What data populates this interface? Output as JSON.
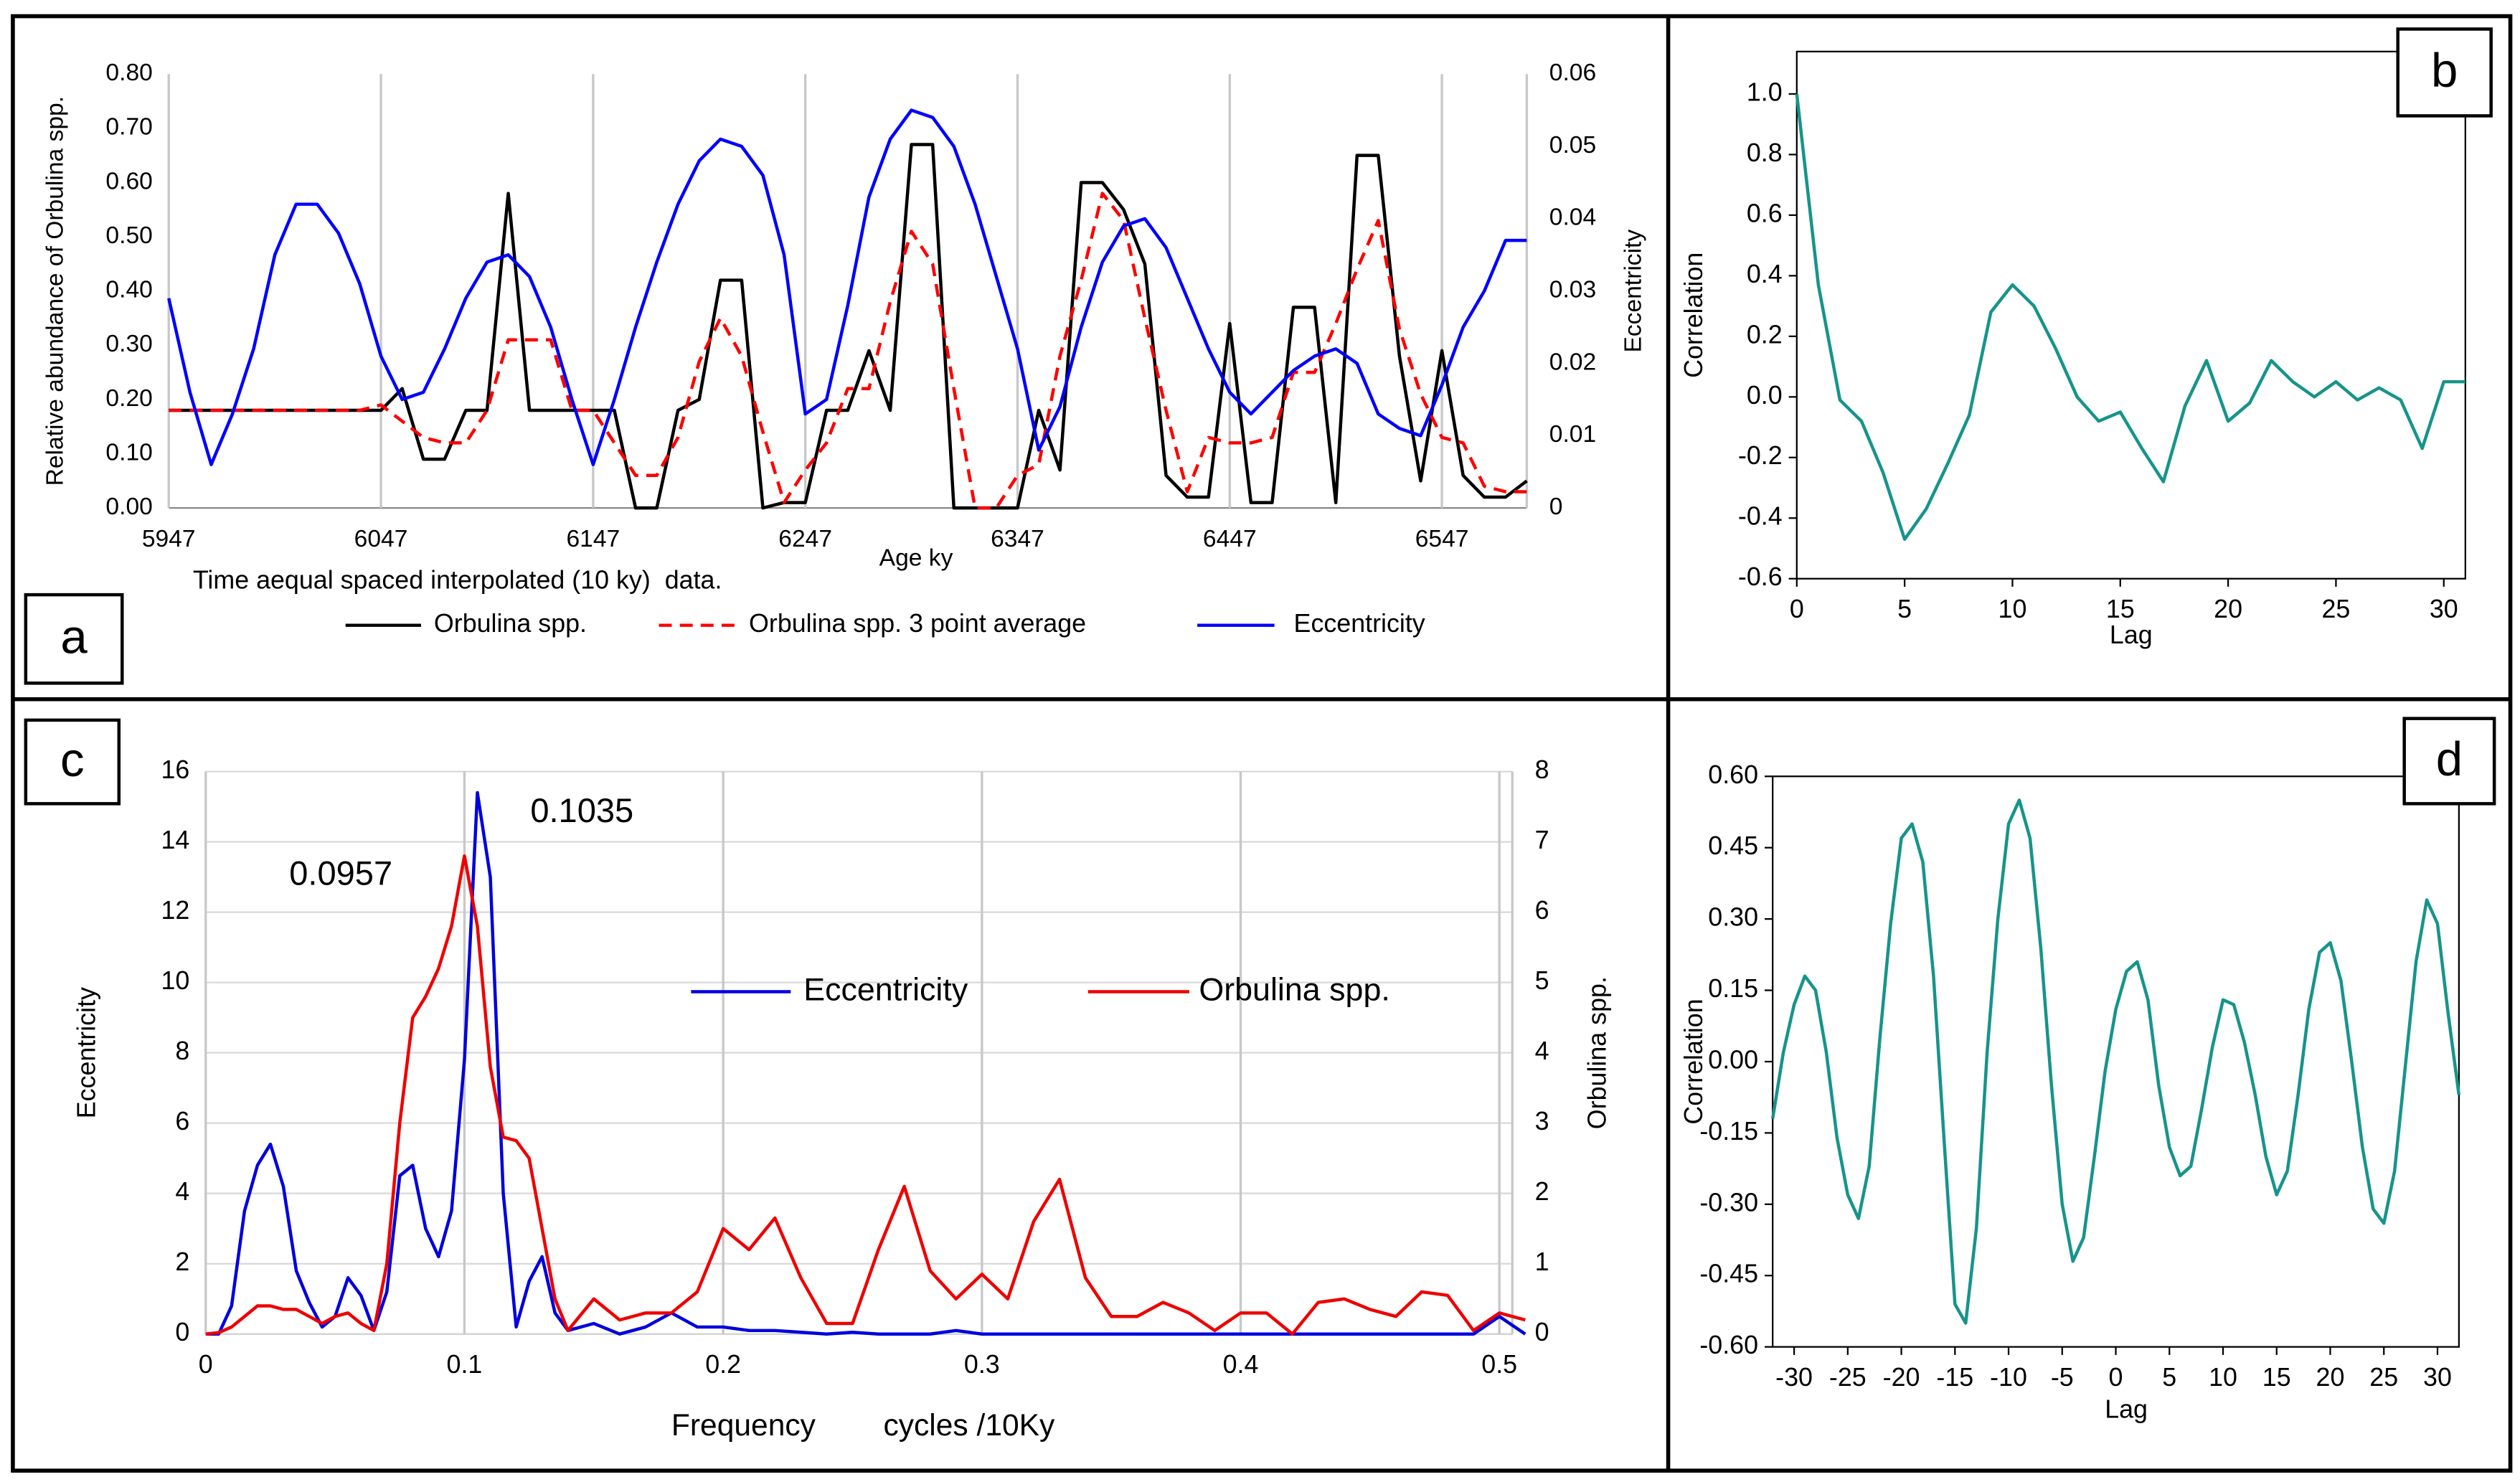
{
  "chart_data": [
    {
      "type": "line",
      "ylabel": "Relative abundance of Orbulina spp.",
      "y2label": "Eccentricity",
      "xlabel": "Age ky",
      "note": "Time aequal spaced interpolated (10 ky)  data.",
      "panel": "a",
      "x": [
        5947,
        5957,
        5967,
        5977,
        5987,
        5997,
        6007,
        6017,
        6027,
        6037,
        6047,
        6057,
        6067,
        6077,
        6087,
        6097,
        6107,
        6117,
        6127,
        6137,
        6147,
        6157,
        6167,
        6177,
        6187,
        6197,
        6207,
        6217,
        6227,
        6237,
        6247,
        6257,
        6267,
        6277,
        6287,
        6297,
        6307,
        6317,
        6327,
        6337,
        6347,
        6357,
        6367,
        6377,
        6387,
        6397,
        6407,
        6417,
        6427,
        6437,
        6447,
        6457,
        6467,
        6477,
        6487,
        6497,
        6507,
        6517,
        6527,
        6537,
        6547,
        6557,
        6567,
        6577,
        6587
      ],
      "xlim": [
        5947,
        6587
      ],
      "xticks": [
        5947,
        6047,
        6147,
        6247,
        6347,
        6447,
        6547
      ],
      "ylim": [
        0,
        0.8
      ],
      "yticks": [
        {
          "value": 0,
          "label": "0.00"
        },
        {
          "value": 0.1,
          "label": "0.10"
        },
        {
          "value": 0.2,
          "label": "0.20"
        },
        {
          "value": 0.3,
          "label": "0.30"
        },
        {
          "value": 0.4,
          "label": "0.40"
        },
        {
          "value": 0.5,
          "label": "0.50"
        },
        {
          "value": 0.6,
          "label": "0.60"
        },
        {
          "value": 0.7,
          "label": "0.70"
        },
        {
          "value": 0.8,
          "label": "0.80"
        }
      ],
      "y2lim": [
        0,
        0.06
      ],
      "y2ticks": [
        0,
        0.01,
        0.02,
        0.03,
        0.04,
        0.05,
        0.06
      ],
      "grid": "x",
      "series": [
        {
          "name": "Orbulina spp.",
          "color": "#000000",
          "values": [
            0.18,
            0.18,
            0.18,
            0.18,
            0.18,
            0.18,
            0.18,
            0.18,
            0.18,
            0.18,
            0.18,
            0.22,
            0.09,
            0.09,
            0.18,
            0.18,
            0.58,
            0.18,
            0.18,
            0.18,
            0.18,
            0.18,
            0,
            0,
            0.18,
            0.2,
            0.42,
            0.42,
            0,
            0.01,
            0.01,
            0.18,
            0.18,
            0.29,
            0.18,
            0.67,
            0.67,
            0,
            0,
            0,
            0,
            0.18,
            0.07,
            0.6,
            0.6,
            0.55,
            0.45,
            0.06,
            0.02,
            0.02,
            0.34,
            0.01,
            0.01,
            0.37,
            0.37,
            0.01,
            0.65,
            0.65,
            0.28,
            0.05,
            0.29,
            0.06,
            0.02,
            0.02,
            0.05
          ]
        },
        {
          "name": "Orbulina spp. 3 point average",
          "color": "#ff0000",
          "dashed": true,
          "values": [
            0.18,
            0.18,
            0.18,
            0.18,
            0.18,
            0.18,
            0.18,
            0.18,
            0.18,
            0.18,
            0.19,
            0.16,
            0.13,
            0.12,
            0.12,
            0.18,
            0.31,
            0.31,
            0.31,
            0.18,
            0.18,
            0.12,
            0.06,
            0.06,
            0.13,
            0.27,
            0.35,
            0.28,
            0.14,
            0.01,
            0.07,
            0.12,
            0.22,
            0.22,
            0.38,
            0.51,
            0.45,
            0.22,
            0,
            0,
            0.06,
            0.08,
            0.28,
            0.42,
            0.58,
            0.53,
            0.35,
            0.18,
            0.03,
            0.13,
            0.12,
            0.12,
            0.13,
            0.25,
            0.25,
            0.34,
            0.44,
            0.53,
            0.33,
            0.21,
            0.13,
            0.12,
            0.04,
            0.03,
            0.03
          ]
        },
        {
          "name": "Eccentricity",
          "color": "#0000ff",
          "axis": "y2",
          "values": [
            0.029,
            0.016,
            0.006,
            0.013,
            0.022,
            0.035,
            0.042,
            0.042,
            0.038,
            0.031,
            0.021,
            0.015,
            0.016,
            0.022,
            0.029,
            0.034,
            0.035,
            0.032,
            0.025,
            0.015,
            0.006,
            0.015,
            0.025,
            0.034,
            0.042,
            0.048,
            0.051,
            0.05,
            0.046,
            0.035,
            0.013,
            0.015,
            0.028,
            0.043,
            0.051,
            0.055,
            0.054,
            0.05,
            0.042,
            0.032,
            0.022,
            0.008,
            0.014,
            0.025,
            0.034,
            0.039,
            0.04,
            0.036,
            0.029,
            0.022,
            0.016,
            0.013,
            0.016,
            0.019,
            0.021,
            0.022,
            0.02,
            0.013,
            0.011,
            0.01,
            0.017,
            0.025,
            0.03,
            0.037,
            0.037
          ]
        }
      ]
    },
    {
      "type": "line",
      "ylabel": "Correlation",
      "xlabel": "Lag",
      "panel": "b",
      "color": "#16948a",
      "frame": true,
      "x": [
        0,
        1,
        2,
        3,
        4,
        5,
        6,
        7,
        8,
        9,
        10,
        11,
        12,
        13,
        14,
        15,
        16,
        17,
        18,
        19,
        20,
        21,
        22,
        23,
        24,
        25,
        26,
        27,
        28,
        29,
        30,
        31
      ],
      "values": [
        1.0,
        0.37,
        -0.01,
        -0.08,
        -0.25,
        -0.47,
        -0.37,
        -0.22,
        -0.06,
        0.28,
        0.37,
        0.3,
        0.16,
        0,
        -0.08,
        -0.05,
        -0.17,
        -0.28,
        -0.03,
        0.12,
        -0.08,
        -0.02,
        0.12,
        0.05,
        0,
        0.05,
        -0.01,
        0.03,
        -0.01,
        -0.17,
        0.05,
        0.05
      ],
      "xlim": [
        0,
        31
      ],
      "xticks": [
        0,
        5,
        10,
        15,
        20,
        25,
        30
      ],
      "ylim": [
        -0.6,
        1.14
      ],
      "yticks": [
        -0.6,
        -0.4,
        -0.2,
        {
          "value": 0,
          "label": "0.0"
        },
        0.2,
        0.4,
        0.6,
        0.8,
        {
          "value": 1,
          "label": "1.0"
        }
      ]
    },
    {
      "type": "line",
      "ylabel": "Eccentricity",
      "y2label": "Orbulina spp.",
      "xlabel": "Frequency        cycles /10Ky",
      "panel": "c",
      "grid": "both",
      "annotations": [
        "0.1035",
        "0.0957"
      ],
      "x": [
        0,
        0.005,
        0.01,
        0.015,
        0.02,
        0.025,
        0.03,
        0.035,
        0.04,
        0.045,
        0.05,
        0.055,
        0.06,
        0.065,
        0.07,
        0.075,
        0.08,
        0.085,
        0.09,
        0.095,
        0.1,
        0.105,
        0.11,
        0.115,
        0.12,
        0.125,
        0.13,
        0.135,
        0.14,
        0.15,
        0.16,
        0.17,
        0.18,
        0.19,
        0.2,
        0.21,
        0.22,
        0.23,
        0.24,
        0.25,
        0.26,
        0.27,
        0.28,
        0.29,
        0.3,
        0.31,
        0.32,
        0.33,
        0.34,
        0.35,
        0.36,
        0.37,
        0.38,
        0.39,
        0.4,
        0.41,
        0.42,
        0.43,
        0.44,
        0.45,
        0.46,
        0.47,
        0.48,
        0.49,
        0.5,
        0.51
      ],
      "xlim": [
        0,
        0.505
      ],
      "xticks": [
        0,
        0.1,
        0.2,
        0.3,
        0.4,
        0.5
      ],
      "ylim": [
        0,
        16
      ],
      "yticks": [
        0,
        2,
        4,
        6,
        8,
        10,
        12,
        14,
        16
      ],
      "y2lim": [
        0,
        8
      ],
      "y2ticks": [
        0,
        1,
        2,
        3,
        4,
        5,
        6,
        7,
        8
      ],
      "series": [
        {
          "name": "Eccentricity",
          "color": "#0000dd",
          "values": [
            0,
            0,
            0.8,
            3.5,
            4.8,
            5.4,
            4.2,
            1.8,
            0.9,
            0.2,
            0.5,
            1.6,
            1.1,
            0.1,
            1.2,
            4.5,
            4.8,
            3.0,
            2.2,
            3.5,
            7.8,
            15.4,
            13.0,
            4.0,
            0.2,
            1.5,
            2.2,
            0.6,
            0.1,
            0.3,
            0,
            0.2,
            0.6,
            0.2,
            0.2,
            0.1,
            0.1,
            0.05,
            0,
            0.05,
            0,
            0,
            0,
            0.1,
            0,
            0,
            0,
            0,
            0,
            0,
            0,
            0,
            0,
            0,
            0,
            0,
            0,
            0,
            0,
            0,
            0,
            0,
            0,
            0,
            0.5,
            0
          ]
        },
        {
          "name": "Orbulina spp.",
          "color": "#ee0000",
          "axis": "y2",
          "values": [
            0,
            0.02,
            0.1,
            0.25,
            0.4,
            0.4,
            0.35,
            0.35,
            0.25,
            0.15,
            0.25,
            0.3,
            0.15,
            0.05,
            1.0,
            3.0,
            4.5,
            4.8,
            5.2,
            5.8,
            6.8,
            5.8,
            3.8,
            2.8,
            2.75,
            2.5,
            1.5,
            0.5,
            0.05,
            0.5,
            0.2,
            0.3,
            0.3,
            0.6,
            1.5,
            1.2,
            1.65,
            0.8,
            0.15,
            0.15,
            1.2,
            2.1,
            0.9,
            0.5,
            0.85,
            0.5,
            1.6,
            2.2,
            0.8,
            0.25,
            0.25,
            0.45,
            0.3,
            0.05,
            0.3,
            0.3,
            0,
            0.45,
            0.5,
            0.35,
            0.25,
            0.6,
            0.55,
            0.05,
            0.3,
            0.2
          ]
        }
      ]
    },
    {
      "type": "line",
      "ylabel": "Correlation",
      "xlabel": "Lag",
      "panel": "d",
      "color": "#16948a",
      "frame": true,
      "x": [
        -32,
        -31,
        -30,
        -29,
        -28,
        -27,
        -26,
        -25,
        -24,
        -23,
        -22,
        -21,
        -20,
        -19,
        -18,
        -17,
        -16,
        -15,
        -14,
        -13,
        -12,
        -11,
        -10,
        -9,
        -8,
        -7,
        -6,
        -5,
        -4,
        -3,
        -2,
        -1,
        0,
        1,
        2,
        3,
        4,
        5,
        6,
        7,
        8,
        9,
        10,
        11,
        12,
        13,
        14,
        15,
        16,
        17,
        18,
        19,
        20,
        21,
        22,
        23,
        24,
        25,
        26,
        27,
        28,
        29,
        30,
        31,
        32
      ],
      "values": [
        -0.12,
        0.02,
        0.12,
        0.18,
        0.15,
        0.02,
        -0.16,
        -0.28,
        -0.33,
        -0.22,
        0.05,
        0.29,
        0.47,
        0.5,
        0.42,
        0.18,
        -0.17,
        -0.51,
        -0.55,
        -0.35,
        0.02,
        0.3,
        0.5,
        0.55,
        0.47,
        0.24,
        -0.05,
        -0.3,
        -0.42,
        -0.37,
        -0.2,
        -0.02,
        0.11,
        0.19,
        0.21,
        0.13,
        -0.05,
        -0.18,
        -0.24,
        -0.22,
        -0.1,
        0.03,
        0.13,
        0.12,
        0.04,
        -0.07,
        -0.2,
        -0.28,
        -0.23,
        -0.07,
        0.11,
        0.23,
        0.25,
        0.17,
        0,
        -0.18,
        -0.31,
        -0.34,
        -0.23,
        -0.01,
        0.21,
        0.34,
        0.29,
        0.1,
        -0.07
      ],
      "xlim": [
        -32,
        32
      ],
      "xticks": [
        -30,
        -25,
        -20,
        -15,
        -10,
        -5,
        0,
        5,
        10,
        15,
        20,
        25,
        30
      ],
      "ylim": [
        -0.6,
        0.6
      ],
      "yticks": [
        {
          "value": -0.6,
          "label": "-0.60"
        },
        {
          "value": -0.45,
          "label": "-0.45"
        },
        {
          "value": -0.3,
          "label": "-0.30"
        },
        {
          "value": -0.15,
          "label": "-0.15"
        },
        {
          "value": 0,
          "label": "0.00"
        },
        {
          "value": 0.15,
          "label": "0.15"
        },
        {
          "value": 0.3,
          "label": "0.30"
        },
        {
          "value": 0.45,
          "label": "0.45"
        },
        {
          "value": 0.6,
          "label": "0.60"
        }
      ]
    }
  ]
}
